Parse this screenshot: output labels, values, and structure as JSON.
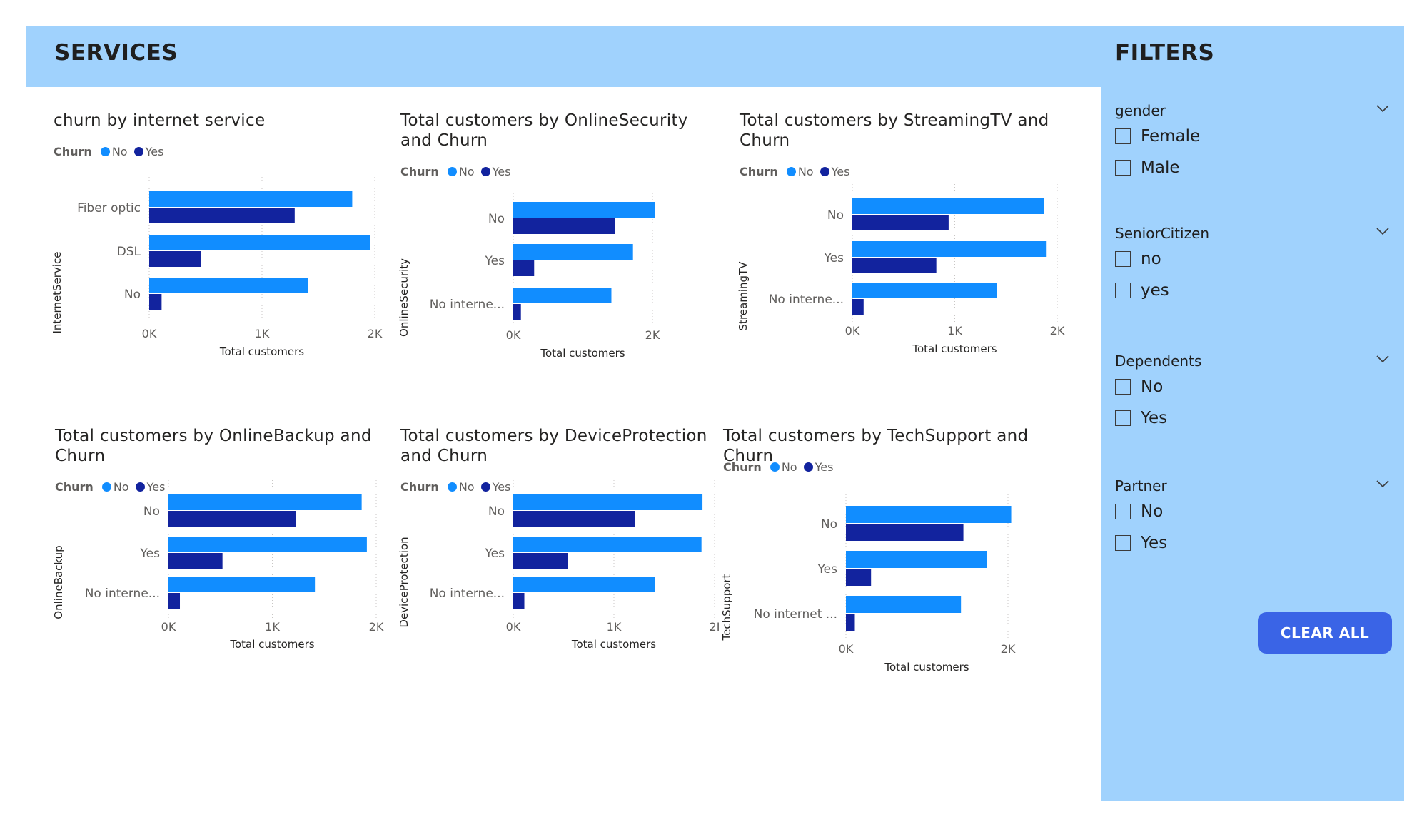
{
  "header": {
    "title": "SERVICES"
  },
  "filters": {
    "title": "FILTERS",
    "slicers": [
      {
        "name": "gender",
        "options": [
          "Female",
          "Male"
        ]
      },
      {
        "name": "SeniorCitizen",
        "options": [
          "no",
          "yes"
        ]
      },
      {
        "name": "Dependents",
        "options": [
          "No",
          "Yes"
        ]
      },
      {
        "name": "Partner",
        "options": [
          "No",
          "Yes"
        ]
      }
    ],
    "clear_label": "CLEAR ALL"
  },
  "colors": {
    "no": "#118dff",
    "yes": "#12239e",
    "header_bg": "#a0d2fd",
    "button": "#3a64e6"
  },
  "chart_data": [
    {
      "type": "bar",
      "orientation": "horizontal",
      "title": "churn by internet service",
      "legend_title": "Churn",
      "ylabel": "InternetService",
      "xlabel": "Total customers",
      "categories": [
        "Fiber optic",
        "DSL",
        "No"
      ],
      "series": [
        {
          "name": "No",
          "values": [
            1800,
            1960,
            1410
          ]
        },
        {
          "name": "Yes",
          "values": [
            1290,
            460,
            110
          ]
        }
      ],
      "xlim": [
        0,
        2000
      ],
      "xticks": [
        "0K",
        "1K",
        "2K"
      ],
      "grid": true
    },
    {
      "type": "bar",
      "orientation": "horizontal",
      "title": "Total customers by OnlineSecurity and Churn",
      "legend_title": "Churn",
      "ylabel": "OnlineSecurity",
      "xlabel": "Total customers",
      "categories": [
        "No",
        "Yes",
        "No interne..."
      ],
      "series": [
        {
          "name": "No",
          "values": [
            2040,
            1720,
            1410
          ]
        },
        {
          "name": "Yes",
          "values": [
            1460,
            300,
            110
          ]
        }
      ],
      "xlim": [
        0,
        2000
      ],
      "xticks": [
        "0K",
        "2K"
      ],
      "grid": true
    },
    {
      "type": "bar",
      "orientation": "horizontal",
      "title": "Total customers by StreamingTV and Churn",
      "legend_title": "Churn",
      "ylabel": "StreamingTV",
      "xlabel": "Total customers",
      "categories": [
        "No",
        "Yes",
        "No interne..."
      ],
      "series": [
        {
          "name": "No",
          "values": [
            1870,
            1890,
            1410
          ]
        },
        {
          "name": "Yes",
          "values": [
            940,
            820,
            110
          ]
        }
      ],
      "xlim": [
        0,
        2000
      ],
      "xticks": [
        "0K",
        "1K",
        "2K"
      ],
      "grid": true
    },
    {
      "type": "bar",
      "orientation": "horizontal",
      "title": "Total customers by OnlineBackup and Churn",
      "legend_title": "Churn",
      "ylabel": "OnlineBackup",
      "xlabel": "Total customers",
      "categories": [
        "No",
        "Yes",
        "No interne..."
      ],
      "series": [
        {
          "name": "No",
          "values": [
            1860,
            1910,
            1410
          ]
        },
        {
          "name": "Yes",
          "values": [
            1230,
            520,
            110
          ]
        }
      ],
      "xlim": [
        0,
        2000
      ],
      "xticks": [
        "0K",
        "1K",
        "2K"
      ],
      "grid": true
    },
    {
      "type": "bar",
      "orientation": "horizontal",
      "title": "Total customers by DeviceProtection and Churn",
      "legend_title": "Churn",
      "ylabel": "DeviceProtection",
      "xlabel": "Total customers",
      "categories": [
        "No",
        "Yes",
        "No interne..."
      ],
      "series": [
        {
          "name": "No",
          "values": [
            1880,
            1870,
            1410
          ]
        },
        {
          "name": "Yes",
          "values": [
            1210,
            540,
            110
          ]
        }
      ],
      "xlim": [
        0,
        2000
      ],
      "xticks": [
        "0K",
        "1K",
        "2I"
      ],
      "grid": true
    },
    {
      "type": "bar",
      "orientation": "horizontal",
      "title": "Total customers by TechSupport and Churn",
      "legend_title": "Churn",
      "ylabel": "TechSupport",
      "xlabel": "Total customers",
      "categories": [
        "No",
        "Yes",
        "No internet ..."
      ],
      "series": [
        {
          "name": "No",
          "values": [
            2040,
            1740,
            1420
          ]
        },
        {
          "name": "Yes",
          "values": [
            1450,
            310,
            110
          ]
        }
      ],
      "xlim": [
        0,
        2000
      ],
      "xticks": [
        "0K",
        "2K"
      ],
      "grid": true
    }
  ]
}
